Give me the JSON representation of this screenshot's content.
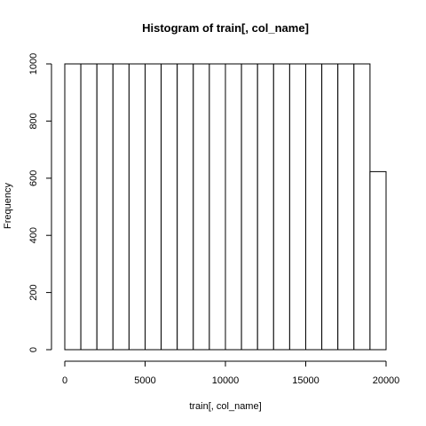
{
  "chart_data": {
    "type": "bar",
    "title": "Histogram of train[, col_name]",
    "xlabel": "train[, col_name]",
    "ylabel": "Frequency",
    "bin_width": 1000,
    "bins": [
      {
        "start": 0,
        "end": 1000,
        "count": 1000
      },
      {
        "start": 1000,
        "end": 2000,
        "count": 1000
      },
      {
        "start": 2000,
        "end": 3000,
        "count": 1000
      },
      {
        "start": 3000,
        "end": 4000,
        "count": 1000
      },
      {
        "start": 4000,
        "end": 5000,
        "count": 1000
      },
      {
        "start": 5000,
        "end": 6000,
        "count": 1000
      },
      {
        "start": 6000,
        "end": 7000,
        "count": 1000
      },
      {
        "start": 7000,
        "end": 8000,
        "count": 1000
      },
      {
        "start": 8000,
        "end": 9000,
        "count": 1000
      },
      {
        "start": 9000,
        "end": 10000,
        "count": 1000
      },
      {
        "start": 10000,
        "end": 11000,
        "count": 1000
      },
      {
        "start": 11000,
        "end": 12000,
        "count": 1000
      },
      {
        "start": 12000,
        "end": 13000,
        "count": 1000
      },
      {
        "start": 13000,
        "end": 14000,
        "count": 1000
      },
      {
        "start": 14000,
        "end": 15000,
        "count": 1000
      },
      {
        "start": 15000,
        "end": 16000,
        "count": 1000
      },
      {
        "start": 16000,
        "end": 17000,
        "count": 1000
      },
      {
        "start": 17000,
        "end": 18000,
        "count": 1000
      },
      {
        "start": 18000,
        "end": 19000,
        "count": 1000
      },
      {
        "start": 19000,
        "end": 20000,
        "count": 623
      }
    ],
    "xlim": [
      0,
      20000
    ],
    "ylim": [
      0,
      1000
    ],
    "x_ticks": [
      0,
      5000,
      10000,
      15000,
      20000
    ],
    "y_ticks": [
      0,
      200,
      400,
      600,
      800,
      1000
    ],
    "grid": false,
    "legend": "none",
    "colors": {
      "bar_fill": "#ffffff",
      "bar_stroke": "#000000"
    }
  }
}
